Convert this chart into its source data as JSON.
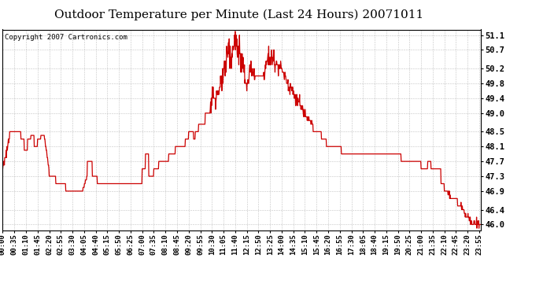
{
  "title": "Outdoor Temperature per Minute (Last 24 Hours) 20071011",
  "copyright": "Copyright 2007 Cartronics.com",
  "line_color": "#cc0000",
  "bg_color": "#ffffff",
  "grid_color": "#aaaaaa",
  "ylim": [
    45.85,
    51.25
  ],
  "yticks": [
    46.0,
    46.4,
    46.9,
    47.3,
    47.7,
    48.1,
    48.5,
    49.0,
    49.4,
    49.8,
    50.2,
    50.7,
    51.1
  ],
  "title_fontsize": 11,
  "tick_fontsize": 6.5,
  "copyright_fontsize": 6.5
}
